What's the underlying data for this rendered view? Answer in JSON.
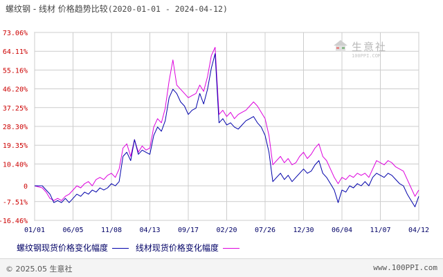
{
  "header": {
    "title": "螺纹钢 - 线材 价格趋势比较",
    "date_range": "(2020-01-01 - 2024-04-12)"
  },
  "watermark": {
    "name": "生意社",
    "url": "100PPI.COM"
  },
  "legend": {
    "rebar": "螺纹钢现货价格变化幅度",
    "wire": "线材现货价格变化幅度"
  },
  "footer": {
    "copyright": "© 2025.05 生意社",
    "site": "www.100PPI.com"
  },
  "colors": {
    "rebar": "#0000aa",
    "wire": "#dd00dd",
    "grid": "#cccccc",
    "axis_text": "#cc0000",
    "date_text": "#000066"
  },
  "chart_data": {
    "type": "line",
    "ytick_labels": [
      "73.06%",
      "64.11%",
      "55.16%",
      "46.20%",
      "37.25%",
      "28.30%",
      "19.35%",
      "10.40%",
      "0",
      "-7.51%",
      "-16.46%"
    ],
    "ytick_values": [
      73.06,
      64.11,
      55.16,
      46.2,
      37.25,
      28.3,
      19.35,
      10.4,
      0,
      -7.51,
      -16.46
    ],
    "ylim": [
      -16.46,
      73.06
    ],
    "xtick_labels": [
      "01/01",
      "06/05",
      "11/08",
      "04/13",
      "09/17",
      "02/20",
      "07/26",
      "12/30",
      "06/04",
      "11/07",
      "04/12"
    ],
    "x_range": [
      0,
      100
    ],
    "grid": true,
    "series": [
      {
        "name": "螺纹钢现货价格变化幅度",
        "color": "#0000aa",
        "points": [
          [
            0,
            0
          ],
          [
            2,
            0
          ],
          [
            3,
            -2
          ],
          [
            4,
            -4
          ],
          [
            5,
            -8
          ],
          [
            6,
            -7
          ],
          [
            7,
            -8
          ],
          [
            8,
            -6
          ],
          [
            9,
            -8
          ],
          [
            10,
            -6
          ],
          [
            11,
            -4
          ],
          [
            12,
            -5
          ],
          [
            13,
            -3
          ],
          [
            14,
            -4
          ],
          [
            15,
            -2
          ],
          [
            16,
            -3
          ],
          [
            17,
            -1
          ],
          [
            18,
            -2
          ],
          [
            19,
            -1
          ],
          [
            20,
            1
          ],
          [
            21,
            0
          ],
          [
            22,
            2
          ],
          [
            23,
            14
          ],
          [
            24,
            16
          ],
          [
            25,
            12
          ],
          [
            26,
            22
          ],
          [
            27,
            15
          ],
          [
            28,
            17
          ],
          [
            29,
            16
          ],
          [
            30,
            15
          ],
          [
            31,
            24
          ],
          [
            32,
            28
          ],
          [
            33,
            26
          ],
          [
            34,
            31
          ],
          [
            35,
            42
          ],
          [
            36,
            46
          ],
          [
            37,
            44
          ],
          [
            38,
            40
          ],
          [
            39,
            38
          ],
          [
            40,
            34
          ],
          [
            41,
            36
          ],
          [
            42,
            37
          ],
          [
            43,
            44
          ],
          [
            44,
            39
          ],
          [
            45,
            46
          ],
          [
            46,
            56
          ],
          [
            47,
            63
          ],
          [
            48,
            30
          ],
          [
            49,
            32
          ],
          [
            50,
            29
          ],
          [
            51,
            30
          ],
          [
            52,
            28
          ],
          [
            53,
            27
          ],
          [
            54,
            29
          ],
          [
            55,
            31
          ],
          [
            56,
            32
          ],
          [
            57,
            33
          ],
          [
            58,
            30
          ],
          [
            59,
            28
          ],
          [
            60,
            24
          ],
          [
            61,
            16
          ],
          [
            62,
            2
          ],
          [
            63,
            4
          ],
          [
            64,
            6
          ],
          [
            65,
            3
          ],
          [
            66,
            5
          ],
          [
            67,
            2
          ],
          [
            68,
            4
          ],
          [
            69,
            6
          ],
          [
            70,
            8
          ],
          [
            71,
            6
          ],
          [
            72,
            7
          ],
          [
            73,
            10
          ],
          [
            74,
            12
          ],
          [
            75,
            6
          ],
          [
            76,
            4
          ],
          [
            77,
            1
          ],
          [
            78,
            -2
          ],
          [
            79,
            -8
          ],
          [
            80,
            -2
          ],
          [
            81,
            -3
          ],
          [
            82,
            0
          ],
          [
            83,
            -1
          ],
          [
            84,
            1
          ],
          [
            85,
            0
          ],
          [
            86,
            2
          ],
          [
            87,
            0
          ],
          [
            88,
            4
          ],
          [
            89,
            6
          ],
          [
            90,
            5
          ],
          [
            91,
            4
          ],
          [
            92,
            6
          ],
          [
            93,
            5
          ],
          [
            94,
            3
          ],
          [
            95,
            1
          ],
          [
            96,
            0
          ],
          [
            97,
            -4
          ],
          [
            98,
            -7
          ],
          [
            99,
            -10
          ],
          [
            100,
            -5
          ]
        ]
      },
      {
        "name": "线材现货价格变化幅度",
        "color": "#dd00dd",
        "points": [
          [
            0,
            0
          ],
          [
            2,
            -1
          ],
          [
            3,
            -3
          ],
          [
            4,
            -6
          ],
          [
            5,
            -7
          ],
          [
            6,
            -6
          ],
          [
            7,
            -7
          ],
          [
            8,
            -5
          ],
          [
            9,
            -4
          ],
          [
            10,
            -2
          ],
          [
            11,
            0
          ],
          [
            12,
            -1
          ],
          [
            13,
            1
          ],
          [
            14,
            2
          ],
          [
            15,
            0
          ],
          [
            16,
            3
          ],
          [
            17,
            4
          ],
          [
            18,
            3
          ],
          [
            19,
            5
          ],
          [
            20,
            6
          ],
          [
            21,
            4
          ],
          [
            22,
            8
          ],
          [
            23,
            18
          ],
          [
            24,
            20
          ],
          [
            25,
            14
          ],
          [
            26,
            22
          ],
          [
            27,
            16
          ],
          [
            28,
            19
          ],
          [
            29,
            17
          ],
          [
            30,
            18
          ],
          [
            31,
            28
          ],
          [
            32,
            32
          ],
          [
            33,
            30
          ],
          [
            34,
            37
          ],
          [
            35,
            50
          ],
          [
            36,
            60
          ],
          [
            37,
            48
          ],
          [
            38,
            46
          ],
          [
            39,
            44
          ],
          [
            40,
            42
          ],
          [
            41,
            43
          ],
          [
            42,
            44
          ],
          [
            43,
            48
          ],
          [
            44,
            45
          ],
          [
            45,
            52
          ],
          [
            46,
            62
          ],
          [
            47,
            66
          ],
          [
            48,
            34
          ],
          [
            49,
            36
          ],
          [
            50,
            33
          ],
          [
            51,
            35
          ],
          [
            52,
            32
          ],
          [
            53,
            34
          ],
          [
            54,
            35
          ],
          [
            55,
            36
          ],
          [
            56,
            38
          ],
          [
            57,
            40
          ],
          [
            58,
            38
          ],
          [
            59,
            35
          ],
          [
            60,
            32
          ],
          [
            61,
            24
          ],
          [
            62,
            10
          ],
          [
            63,
            12
          ],
          [
            64,
            14
          ],
          [
            65,
            11
          ],
          [
            66,
            13
          ],
          [
            67,
            10
          ],
          [
            68,
            11
          ],
          [
            69,
            14
          ],
          [
            70,
            16
          ],
          [
            71,
            13
          ],
          [
            72,
            15
          ],
          [
            73,
            18
          ],
          [
            74,
            20
          ],
          [
            75,
            14
          ],
          [
            76,
            12
          ],
          [
            77,
            8
          ],
          [
            78,
            4
          ],
          [
            79,
            1
          ],
          [
            80,
            4
          ],
          [
            81,
            3
          ],
          [
            82,
            5
          ],
          [
            83,
            4
          ],
          [
            84,
            6
          ],
          [
            85,
            5
          ],
          [
            86,
            6
          ],
          [
            87,
            4
          ],
          [
            88,
            8
          ],
          [
            89,
            12
          ],
          [
            90,
            11
          ],
          [
            91,
            10
          ],
          [
            92,
            12
          ],
          [
            93,
            11
          ],
          [
            94,
            9
          ],
          [
            95,
            8
          ],
          [
            96,
            7
          ],
          [
            97,
            3
          ],
          [
            98,
            -1
          ],
          [
            99,
            -5
          ],
          [
            100,
            -2
          ]
        ]
      }
    ]
  }
}
